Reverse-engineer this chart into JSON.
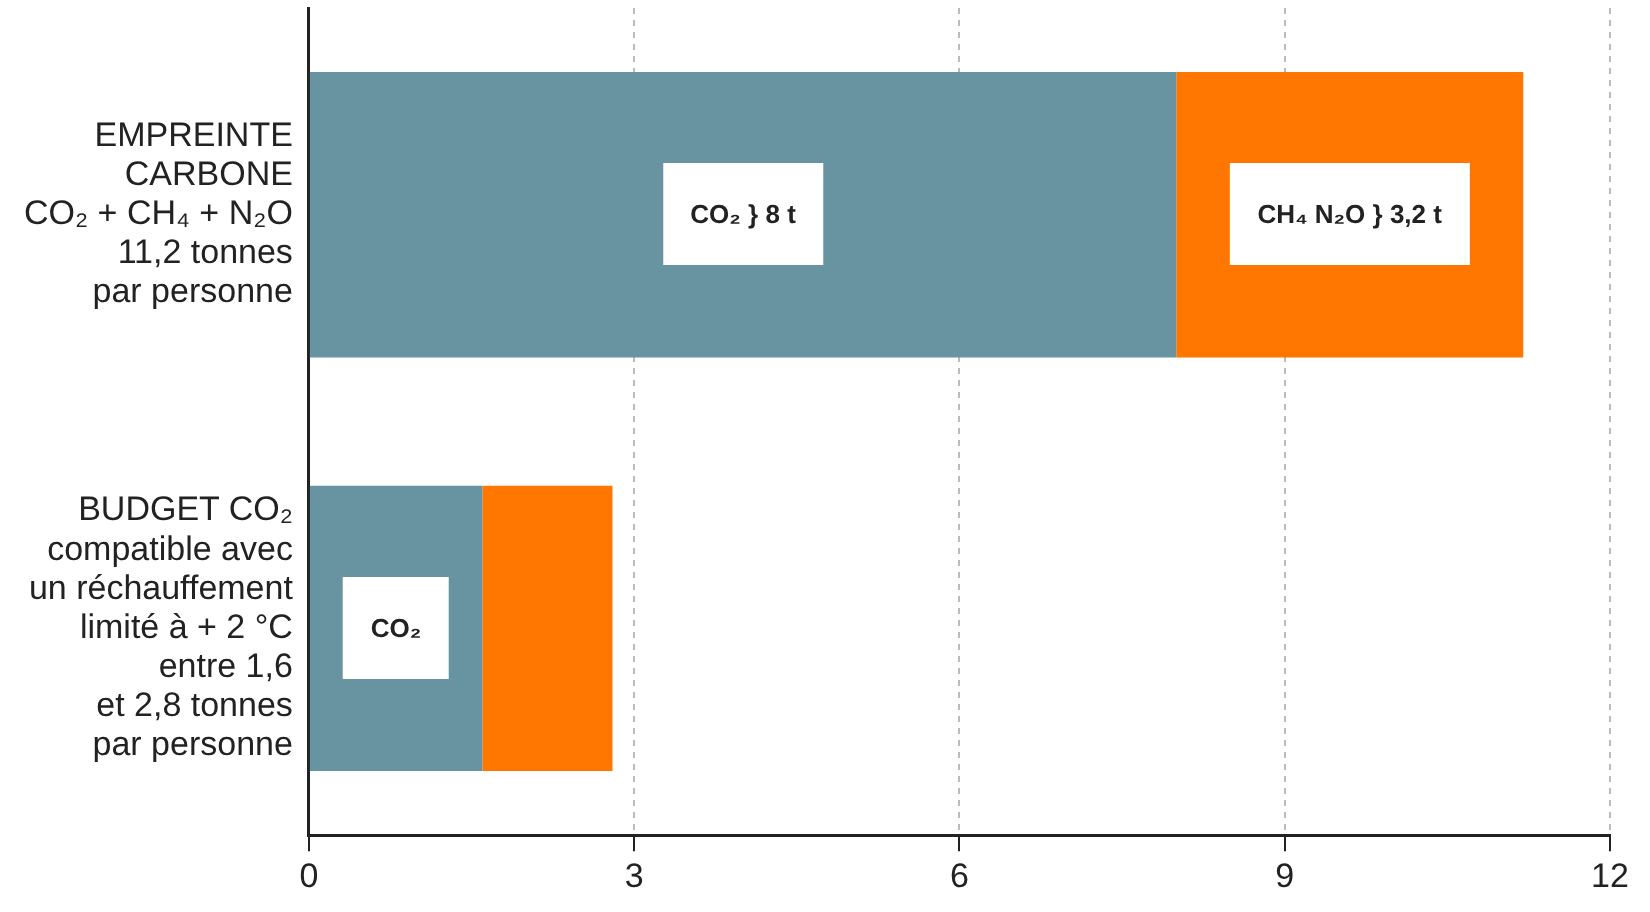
{
  "chart_data": {
    "type": "bar",
    "orientation": "horizontal",
    "stacked": true,
    "categories": [
      "EMPREINTE\nCARBONE\nCO₂ + CH₄ + N₂O\n11,2 tonnes\npar personne",
      "BUDGET CO₂\ncompatible avec\nun réchauffement\nlimité à + 2 °C\nentre 1,6\net 2,8 tonnes\npar personne"
    ],
    "series": [
      {
        "color": "#6894a2",
        "values": [
          8,
          1.6
        ]
      },
      {
        "color": "#ff7700",
        "values": [
          3.2,
          1.2
        ]
      }
    ],
    "xlim": [
      0,
      12
    ],
    "xticks": [
      0,
      3,
      6,
      9,
      12
    ],
    "grid": "x",
    "legend": false,
    "annotations": [
      "CO₂ } 8 t",
      "CH₄ N₂O } 3,2 t",
      "CO₂"
    ]
  }
}
